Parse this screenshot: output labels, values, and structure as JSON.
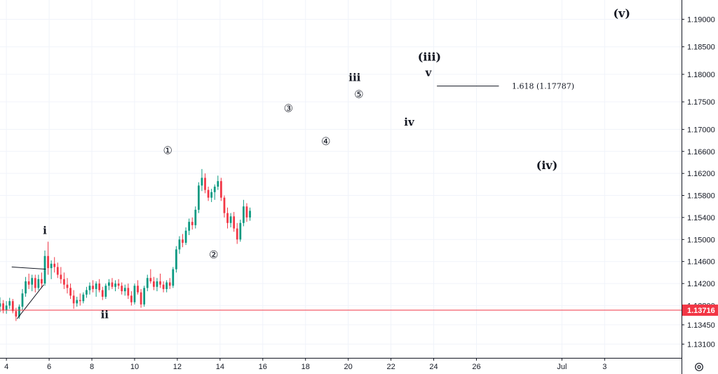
{
  "chart_data": {
    "type": "candlestick",
    "y_axis": {
      "ticks": [
        "1.19000",
        "1.18500",
        "1.18000",
        "1.17500",
        "1.17000",
        "1.16600",
        "1.16200",
        "1.15800",
        "1.15400",
        "1.15000",
        "1.14600",
        "1.14200",
        "1.13800",
        "1.13450",
        "1.13100"
      ],
      "ylim": [
        1.1285,
        1.1935
      ]
    },
    "x_axis": {
      "ticks": [
        "4",
        "6",
        "8",
        "10",
        "12",
        "14",
        "16",
        "18",
        "20",
        "22",
        "24",
        "26",
        "Jul",
        "3"
      ],
      "xlim": [
        3.7,
        35.6
      ]
    },
    "current_price": {
      "label": "1.13716",
      "value": 1.13716,
      "color": "#f23645"
    },
    "colors": {
      "up": "#089981",
      "down": "#f23645",
      "grid": "#f0f3fa",
      "text": "#131722"
    },
    "candles": [
      [
        3.7,
        1.1378,
        1.1395,
        1.1368,
        1.1384
      ],
      [
        3.85,
        1.1384,
        1.139,
        1.1366,
        1.1372
      ],
      [
        4.0,
        1.1372,
        1.1388,
        1.1365,
        1.138
      ],
      [
        4.15,
        1.138,
        1.1394,
        1.1374,
        1.1388
      ],
      [
        4.3,
        1.1388,
        1.1392,
        1.1366,
        1.137
      ],
      [
        4.45,
        1.137,
        1.1376,
        1.1352,
        1.136
      ],
      [
        4.6,
        1.136,
        1.1382,
        1.1356,
        1.1378
      ],
      [
        4.75,
        1.1378,
        1.141,
        1.1372,
        1.1402
      ],
      [
        4.9,
        1.1402,
        1.1432,
        1.1396,
        1.1424
      ],
      [
        5.05,
        1.1424,
        1.1438,
        1.141,
        1.1418
      ],
      [
        5.2,
        1.1418,
        1.1436,
        1.1406,
        1.143
      ],
      [
        5.35,
        1.143,
        1.1436,
        1.1404,
        1.1412
      ],
      [
        5.5,
        1.1412,
        1.1436,
        1.1408,
        1.1428
      ],
      [
        5.65,
        1.1428,
        1.144,
        1.1412,
        1.142
      ],
      [
        5.8,
        1.142,
        1.148,
        1.1416,
        1.147
      ],
      [
        5.95,
        1.147,
        1.1496,
        1.1436,
        1.1448
      ],
      [
        6.1,
        1.1448,
        1.1462,
        1.1428,
        1.1456
      ],
      [
        6.25,
        1.1456,
        1.1468,
        1.144,
        1.145
      ],
      [
        6.4,
        1.145,
        1.1458,
        1.143,
        1.1436
      ],
      [
        6.55,
        1.1436,
        1.145,
        1.142,
        1.1428
      ],
      [
        6.7,
        1.1428,
        1.144,
        1.141,
        1.1418
      ],
      [
        6.85,
        1.1418,
        1.143,
        1.1402,
        1.1412
      ],
      [
        7.0,
        1.1412,
        1.142,
        1.1392,
        1.1398
      ],
      [
        7.15,
        1.1398,
        1.1408,
        1.1374,
        1.1384
      ],
      [
        7.3,
        1.1384,
        1.1396,
        1.1378,
        1.139
      ],
      [
        7.45,
        1.139,
        1.1402,
        1.138,
        1.1388
      ],
      [
        7.6,
        1.1388,
        1.1404,
        1.1384,
        1.14
      ],
      [
        7.75,
        1.14,
        1.1414,
        1.1394,
        1.1408
      ],
      [
        7.9,
        1.1408,
        1.1422,
        1.14,
        1.1416
      ],
      [
        8.05,
        1.1416,
        1.1426,
        1.1404,
        1.141
      ],
      [
        8.2,
        1.141,
        1.1424,
        1.1396,
        1.142
      ],
      [
        8.35,
        1.142,
        1.1428,
        1.1404,
        1.1408
      ],
      [
        8.5,
        1.1408,
        1.1414,
        1.139,
        1.1396
      ],
      [
        8.65,
        1.1396,
        1.142,
        1.1392,
        1.1416
      ],
      [
        8.8,
        1.1416,
        1.1428,
        1.1408,
        1.1422
      ],
      [
        8.95,
        1.1422,
        1.143,
        1.141,
        1.1414
      ],
      [
        9.1,
        1.1414,
        1.1426,
        1.1406,
        1.142
      ],
      [
        9.25,
        1.142,
        1.1428,
        1.141,
        1.1416
      ],
      [
        9.4,
        1.1416,
        1.1422,
        1.14,
        1.1406
      ],
      [
        9.55,
        1.1406,
        1.1418,
        1.1398,
        1.1412
      ],
      [
        9.7,
        1.1412,
        1.142,
        1.1392,
        1.1398
      ],
      [
        9.85,
        1.1398,
        1.1406,
        1.138,
        1.1386
      ],
      [
        10.0,
        1.1386,
        1.142,
        1.1382,
        1.1416
      ],
      [
        10.15,
        1.1416,
        1.1426,
        1.14,
        1.1404
      ],
      [
        10.3,
        1.1404,
        1.141,
        1.1376,
        1.1382
      ],
      [
        10.45,
        1.1382,
        1.1416,
        1.1378,
        1.1412
      ],
      [
        10.6,
        1.1412,
        1.1436,
        1.1406,
        1.143
      ],
      [
        10.75,
        1.143,
        1.1446,
        1.142,
        1.1424
      ],
      [
        10.9,
        1.1424,
        1.1432,
        1.1408,
        1.1414
      ],
      [
        11.05,
        1.1414,
        1.143,
        1.1406,
        1.1424
      ],
      [
        11.2,
        1.1424,
        1.1438,
        1.1412,
        1.1418
      ],
      [
        11.35,
        1.1418,
        1.1424,
        1.1404,
        1.141
      ],
      [
        11.5,
        1.141,
        1.1426,
        1.1404,
        1.1422
      ],
      [
        11.65,
        1.1422,
        1.143,
        1.141,
        1.1416
      ],
      [
        11.8,
        1.1416,
        1.145,
        1.1412,
        1.1446
      ],
      [
        11.95,
        1.1446,
        1.1488,
        1.144,
        1.1482
      ],
      [
        12.1,
        1.1482,
        1.1506,
        1.1474,
        1.15
      ],
      [
        12.25,
        1.15,
        1.151,
        1.1486,
        1.1494
      ],
      [
        12.4,
        1.1494,
        1.1522,
        1.149,
        1.1516
      ],
      [
        12.55,
        1.1516,
        1.1538,
        1.1508,
        1.1532
      ],
      [
        12.7,
        1.1532,
        1.154,
        1.1518,
        1.1526
      ],
      [
        12.85,
        1.1526,
        1.156,
        1.152,
        1.1554
      ],
      [
        13.0,
        1.1554,
        1.1604,
        1.1548,
        1.1598
      ],
      [
        13.15,
        1.1598,
        1.1628,
        1.1588,
        1.1612
      ],
      [
        13.3,
        1.1612,
        1.162,
        1.1584,
        1.159
      ],
      [
        13.45,
        1.159,
        1.1596,
        1.157,
        1.1576
      ],
      [
        13.6,
        1.1576,
        1.1592,
        1.1568,
        1.1586
      ],
      [
        13.75,
        1.1586,
        1.16,
        1.1572,
        1.1596
      ],
      [
        13.9,
        1.1596,
        1.1616,
        1.159,
        1.1606
      ],
      [
        14.05,
        1.1606,
        1.1612,
        1.157,
        1.1576
      ],
      [
        14.2,
        1.1576,
        1.158,
        1.154,
        1.1548
      ],
      [
        14.35,
        1.1548,
        1.1558,
        1.152,
        1.153
      ],
      [
        14.5,
        1.153,
        1.1548,
        1.1522,
        1.1542
      ],
      [
        14.65,
        1.1542,
        1.155,
        1.1514,
        1.152
      ],
      [
        14.8,
        1.152,
        1.153,
        1.1492,
        1.15
      ],
      [
        14.95,
        1.15,
        1.1536,
        1.1496,
        1.153
      ],
      [
        15.1,
        1.153,
        1.1572,
        1.1524,
        1.156
      ],
      [
        15.25,
        1.156,
        1.1566,
        1.1532,
        1.154
      ],
      [
        15.4,
        1.154,
        1.1558,
        1.1534,
        1.1552
      ]
    ],
    "lines": [
      {
        "name": "upper-trendline",
        "x1": 4.25,
        "y1": 1.145,
        "x2": 5.85,
        "y2": 1.1446
      },
      {
        "name": "lower-trendline",
        "x1": 4.5,
        "y1": 1.1356,
        "x2": 5.75,
        "y2": 1.1418
      },
      {
        "name": "fib-target-line",
        "x1": 24.15,
        "y1": 1.17787,
        "x2": 27.05,
        "y2": 1.17787
      }
    ],
    "annotations": [
      {
        "text": "i",
        "x": 5.8,
        "y": 1.151,
        "style": "roman",
        "size": 15
      },
      {
        "text": "ii",
        "x": 8.6,
        "y": 1.1357,
        "style": "roman",
        "size": 15
      },
      {
        "text": "①",
        "x": 11.55,
        "y": 1.1655,
        "style": "circled",
        "size": 15
      },
      {
        "text": "②",
        "x": 13.7,
        "y": 1.1466,
        "style": "circled",
        "size": 15
      },
      {
        "text": "③",
        "x": 17.2,
        "y": 1.1732,
        "style": "circled",
        "size": 15
      },
      {
        "text": "④",
        "x": 18.95,
        "y": 1.1672,
        "style": "circled",
        "size": 15
      },
      {
        "text": "iii",
        "x": 20.3,
        "y": 1.1788,
        "style": "roman",
        "size": 15
      },
      {
        "text": "⑤",
        "x": 20.5,
        "y": 1.1757,
        "style": "circled",
        "size": 15
      },
      {
        "text": "(iii)",
        "x": 23.8,
        "y": 1.1825,
        "style": "roman",
        "size": 16
      },
      {
        "text": "v",
        "x": 23.75,
        "y": 1.1797,
        "style": "roman",
        "size": 15
      },
      {
        "text": "iv",
        "x": 22.85,
        "y": 1.1707,
        "style": "roman",
        "size": 15
      },
      {
        "text": "(iv)",
        "x": 29.3,
        "y": 1.1628,
        "style": "roman",
        "size": 16
      },
      {
        "text": "(v)",
        "x": 32.8,
        "y": 1.1904,
        "style": "roman",
        "size": 16
      }
    ],
    "fib_label": {
      "text": "1.618 (1.17787)",
      "x": 29.3,
      "y": 1.17787
    }
  }
}
